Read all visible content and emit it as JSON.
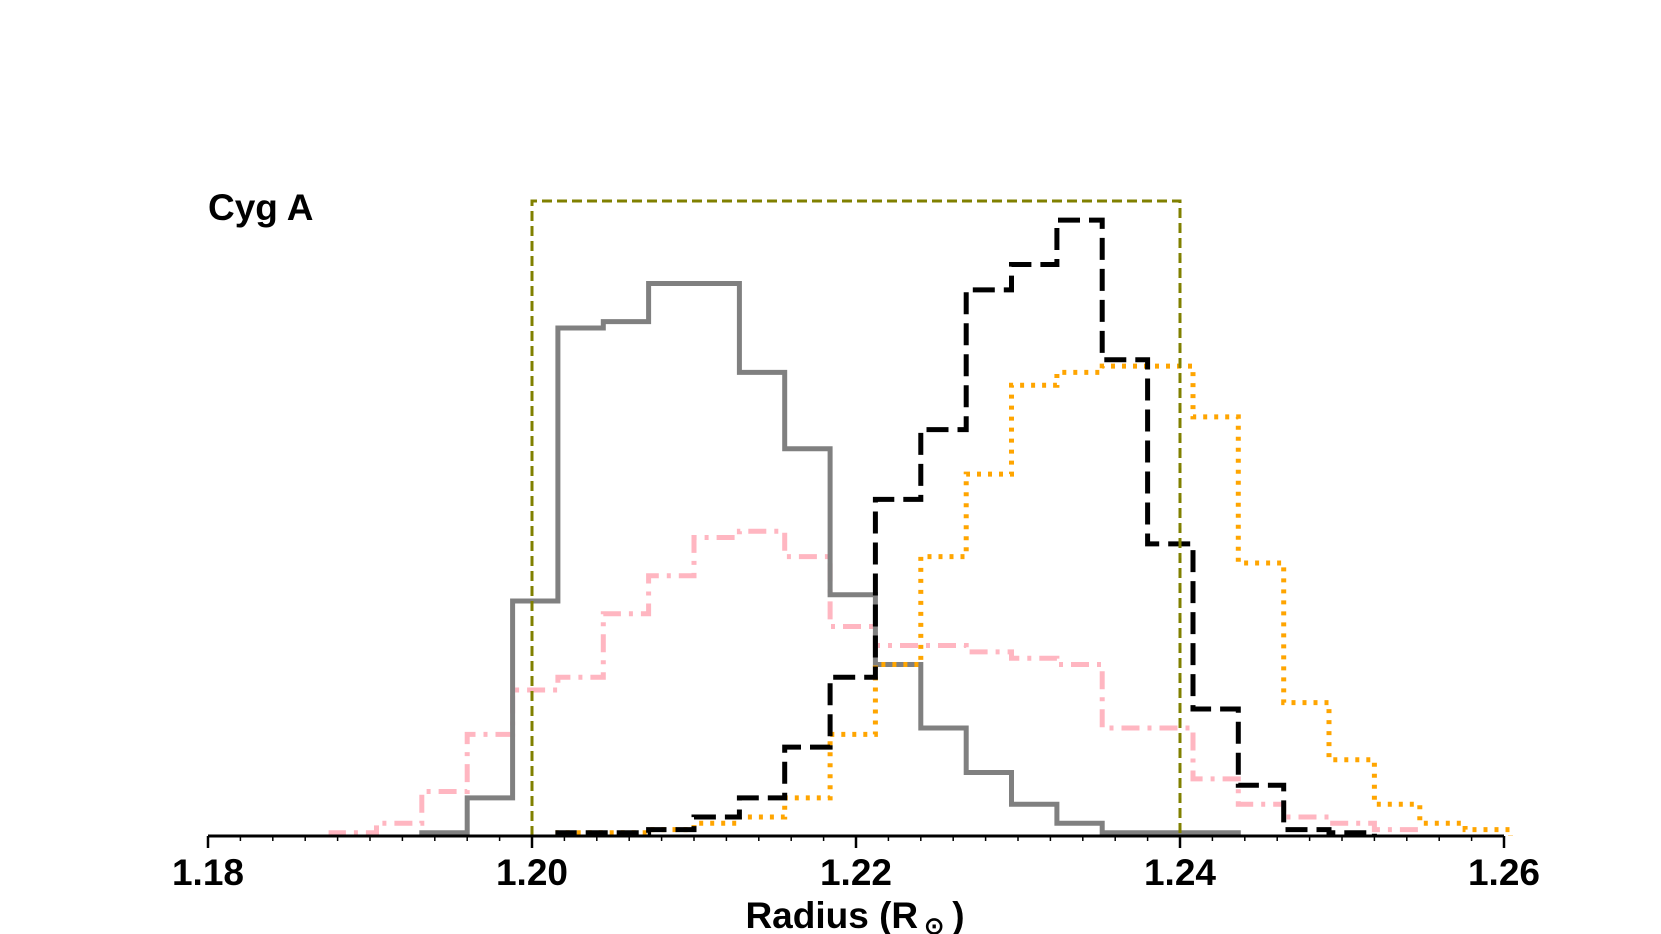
{
  "chart_data": {
    "type": "histogram",
    "annotation": "Cyg A",
    "xlabel_prefix": "Radius (R",
    "xlabel_symbol": "⊙",
    "xlabel_suffix": ")",
    "xlim": [
      1.18,
      1.26
    ],
    "ylim": [
      0,
      1.08
    ],
    "y_axis_visible": false,
    "grid": false,
    "legend": "none",
    "x_ticks": [
      1.18,
      1.2,
      1.22,
      1.24,
      1.26
    ],
    "x_tick_labels": [
      "1.18",
      "1.20",
      "1.22",
      "1.24",
      "1.26"
    ],
    "bin_width": 0.0028,
    "series": [
      {
        "color": "#ffb6c1",
        "style": "dash-dot",
        "bin_start": 1.1876,
        "values": [
          0.005,
          0.02,
          0.07,
          0.16,
          0.23,
          0.25,
          0.35,
          0.41,
          0.47,
          0.48,
          0.44,
          0.33,
          0.3,
          0.3,
          0.29,
          0.28,
          0.27,
          0.17,
          0.17,
          0.09,
          0.05,
          0.03,
          0.02,
          0.01
        ]
      },
      {
        "color": "#808080",
        "style": "solid",
        "bin_start": 1.1932,
        "values": [
          0.005,
          0.06,
          0.37,
          0.8,
          0.81,
          0.87,
          0.87,
          0.73,
          0.61,
          0.38,
          0.27,
          0.17,
          0.1,
          0.05,
          0.02,
          0.005,
          0.005,
          0.005
        ]
      },
      {
        "color": "#ffa500",
        "style": "dotted",
        "bin_start": 1.2016,
        "values": [
          0.005,
          0.005,
          0.01,
          0.02,
          0.03,
          0.06,
          0.16,
          0.27,
          0.44,
          0.57,
          0.71,
          0.73,
          0.74,
          0.74,
          0.66,
          0.43,
          0.21,
          0.12,
          0.05,
          0.02,
          0.01
        ]
      },
      {
        "color": "#000000",
        "style": "dashed",
        "bin_start": 1.2016,
        "values": [
          0.005,
          0.005,
          0.01,
          0.03,
          0.06,
          0.14,
          0.25,
          0.53,
          0.64,
          0.86,
          0.9,
          0.97,
          0.75,
          0.46,
          0.2,
          0.08,
          0.01,
          0.005
        ]
      }
    ],
    "reference_box": {
      "x": [
        1.2,
        1.24
      ],
      "y_top": 1.0,
      "color": "#808000",
      "style": "dashed"
    }
  }
}
